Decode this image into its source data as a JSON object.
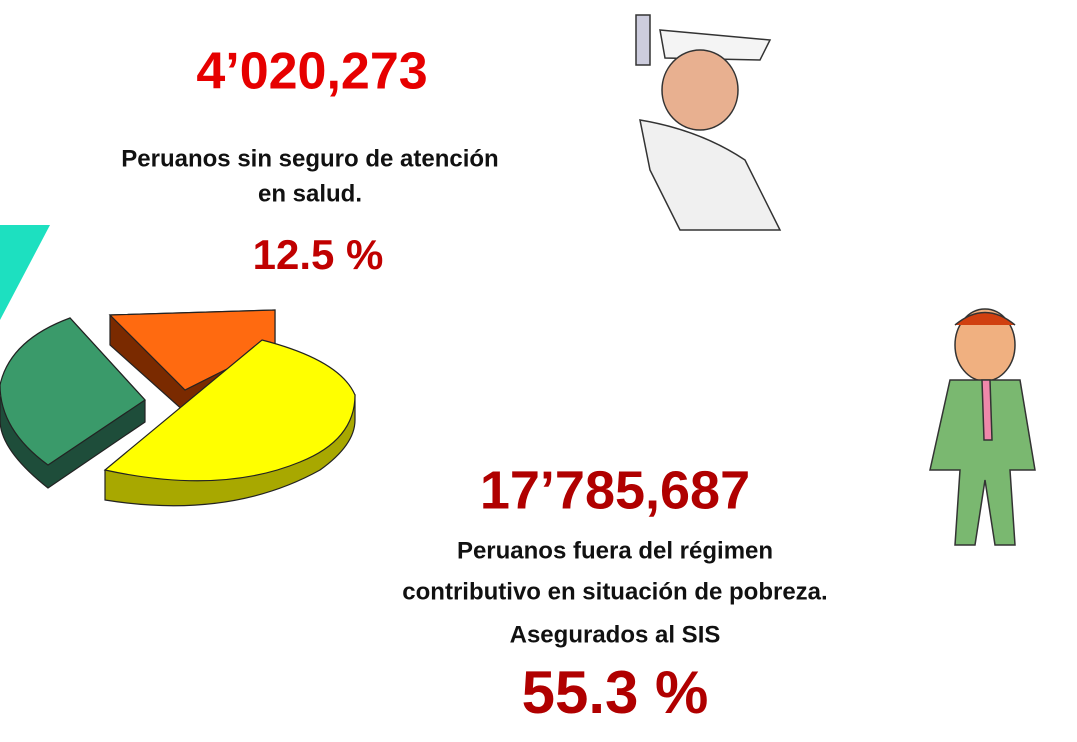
{
  "blocks": [
    {
      "number": "4’020,273",
      "caption": [
        "Peruanos sin seguro de atención",
        "en salud."
      ],
      "percent": "12.5 %"
    },
    {
      "number": "17’785,687",
      "caption": [
        "Peruanos fuera del régimen",
        "contributivo en situación de pobreza.",
        "Asegurados al SIS"
      ],
      "percent": "55.3 %"
    }
  ]
}
